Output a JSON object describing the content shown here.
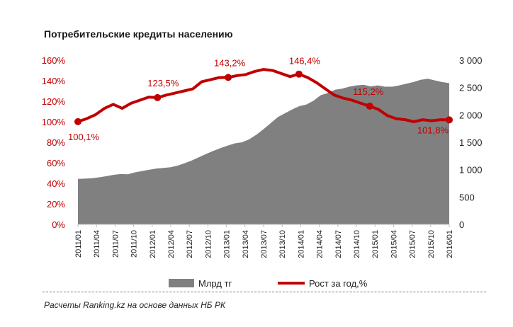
{
  "chart_data": {
    "type": "line",
    "title": "Потребительские  кредиты населению",
    "source_note": "Расчеты Ranking.kz на основе данных НБ РК",
    "left_axis": {
      "min": 0,
      "max": 160,
      "step": 20,
      "tick_labels": [
        "0%",
        "20%",
        "40%",
        "60%",
        "80%",
        "100%",
        "120%",
        "140%",
        "160%"
      ]
    },
    "right_axis": {
      "min": 0,
      "max": 3000,
      "step": 500,
      "tick_labels": [
        "0",
        "500",
        "1 000",
        "1 500",
        "2 000",
        "2 500",
        "3 000"
      ]
    },
    "x_tick_labels": [
      "2011/01",
      "2011/04",
      "2011/07",
      "2011/10",
      "2012/01",
      "2012/04",
      "2012/07",
      "2012/10",
      "2013/01",
      "2013/04",
      "2013/07",
      "2013/10",
      "2014/01",
      "2014/04",
      "2014/07",
      "2014/10",
      "2015/01",
      "2015/04",
      "2015/07",
      "2015/10",
      "2016/01"
    ],
    "grid": false,
    "legend_position": "bottom",
    "series": [
      {
        "name": "Млрд тг",
        "kind": "area",
        "axis": "right",
        "color": "#808080",
        "values": [
          830,
          835,
          845,
          860,
          880,
          905,
          920,
          915,
          950,
          975,
          1000,
          1020,
          1030,
          1045,
          1075,
          1120,
          1170,
          1230,
          1290,
          1345,
          1395,
          1440,
          1480,
          1500,
          1555,
          1640,
          1740,
          1850,
          1960,
          2030,
          2100,
          2160,
          2190,
          2260,
          2360,
          2400,
          2460,
          2480,
          2515,
          2540,
          2550,
          2520,
          2540,
          2515,
          2515,
          2540,
          2570,
          2600,
          2640,
          2660,
          2630,
          2600,
          2580
        ]
      },
      {
        "name": "Рост за год,%",
        "kind": "line",
        "axis": "left",
        "color": "#c00000",
        "values": [
          100.1,
          103,
          107,
          113,
          117,
          113,
          118,
          121,
          124,
          123.5,
          126,
          128,
          130,
          132,
          139,
          141,
          143,
          143.2,
          145,
          146,
          149,
          151,
          150,
          147,
          144,
          146.4,
          143,
          138,
          132,
          126,
          123,
          121,
          118,
          115.2,
          112,
          106,
          103,
          102,
          100,
          102,
          101,
          102,
          101.8
        ],
        "markers": [
          {
            "index": 0,
            "label": "100,1%"
          },
          {
            "index": 9,
            "label": "123,5%"
          },
          {
            "index": 17,
            "label": "143,2%"
          },
          {
            "index": 25,
            "label": "146,4%"
          },
          {
            "index": 33,
            "label": "115,2%"
          },
          {
            "index": 42,
            "label": "101,8%"
          }
        ]
      }
    ]
  },
  "colors": {
    "axis_text": "#c00000",
    "right_axis_text": "#222222",
    "area": "#808080",
    "line": "#c00000"
  }
}
